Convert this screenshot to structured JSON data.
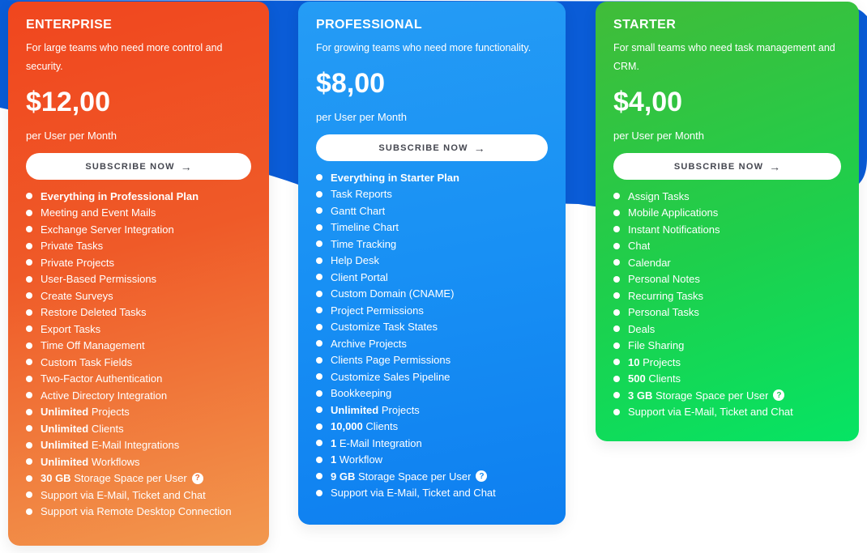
{
  "ui": {
    "cta_label": "SUBSCRIBE NOW",
    "cta_arrow": "→",
    "help_icon": "?"
  },
  "colors": {
    "enterprise_gradient_top": "#F0461E",
    "enterprise_gradient_bottom": "#F2984E",
    "professional_gradient_top": "#259CF5",
    "professional_gradient_bottom": "#0E7FF0",
    "starter_gradient_top": "#41BC39",
    "starter_gradient_bottom": "#06E464",
    "ribbon_blue": "#0A5CD7",
    "button_text": "#44464F",
    "card_text": "#FFFFFF"
  },
  "plans": [
    {
      "id": "enterprise",
      "name": "ENTERPRISE",
      "description": "For large teams who need more control and security.",
      "price": "$12,00",
      "billing_cycle": "per User per Month",
      "features": [
        {
          "b": "Everything in Professional Plan",
          "t": ""
        },
        {
          "b": "",
          "t": "Meeting and Event Mails"
        },
        {
          "b": "",
          "t": "Exchange Server Integration"
        },
        {
          "b": "",
          "t": "Private Tasks"
        },
        {
          "b": "",
          "t": "Private Projects"
        },
        {
          "b": "",
          "t": "User-Based Permissions"
        },
        {
          "b": "",
          "t": "Create Surveys"
        },
        {
          "b": "",
          "t": "Restore Deleted Tasks"
        },
        {
          "b": "",
          "t": "Export Tasks"
        },
        {
          "b": "",
          "t": "Time Off Management"
        },
        {
          "b": "",
          "t": "Custom Task Fields"
        },
        {
          "b": "",
          "t": "Two-Factor Authentication"
        },
        {
          "b": "",
          "t": "Active Directory Integration"
        },
        {
          "b": "Unlimited",
          "t": " Projects"
        },
        {
          "b": "Unlimited",
          "t": " Clients"
        },
        {
          "b": "Unlimited",
          "t": " E-Mail Integrations"
        },
        {
          "b": "Unlimited",
          "t": " Workflows"
        },
        {
          "b": "30 GB",
          "t": " Storage Space per User",
          "help": true
        },
        {
          "b": "",
          "t": "Support via E-Mail, Ticket and Chat"
        },
        {
          "b": "",
          "t": "Support via Remote Desktop Connection"
        }
      ]
    },
    {
      "id": "professional",
      "name": "PROFESSIONAL",
      "description": "For growing teams who need more functionality.",
      "price": "$8,00",
      "billing_cycle": "per User per Month",
      "features": [
        {
          "b": "Everything in Starter Plan",
          "t": ""
        },
        {
          "b": "",
          "t": "Task Reports"
        },
        {
          "b": "",
          "t": "Gantt Chart"
        },
        {
          "b": "",
          "t": "Timeline Chart"
        },
        {
          "b": "",
          "t": "Time Tracking"
        },
        {
          "b": "",
          "t": "Help Desk"
        },
        {
          "b": "",
          "t": "Client Portal"
        },
        {
          "b": "",
          "t": "Custom Domain (CNAME)"
        },
        {
          "b": "",
          "t": "Project Permissions"
        },
        {
          "b": "",
          "t": "Customize Task States"
        },
        {
          "b": "",
          "t": "Archive Projects"
        },
        {
          "b": "",
          "t": "Clients Page Permissions"
        },
        {
          "b": "",
          "t": "Customize Sales Pipeline"
        },
        {
          "b": "",
          "t": "Bookkeeping"
        },
        {
          "b": "Unlimited",
          "t": " Projects"
        },
        {
          "b": "10,000",
          "t": " Clients"
        },
        {
          "b": "1",
          "t": " E-Mail Integration"
        },
        {
          "b": "1",
          "t": " Workflow"
        },
        {
          "b": "9 GB",
          "t": " Storage Space per User",
          "help": true
        },
        {
          "b": "",
          "t": "Support via E-Mail, Ticket and Chat"
        }
      ]
    },
    {
      "id": "starter",
      "name": "STARTER",
      "description": "For small teams who need task management and CRM.",
      "price": "$4,00",
      "billing_cycle": "per User per Month",
      "features": [
        {
          "b": "",
          "t": "Assign Tasks"
        },
        {
          "b": "",
          "t": "Mobile Applications"
        },
        {
          "b": "",
          "t": "Instant Notifications"
        },
        {
          "b": "",
          "t": "Chat"
        },
        {
          "b": "",
          "t": "Calendar"
        },
        {
          "b": "",
          "t": "Personal Notes"
        },
        {
          "b": "",
          "t": "Recurring Tasks"
        },
        {
          "b": "",
          "t": "Personal Tasks"
        },
        {
          "b": "",
          "t": "Deals"
        },
        {
          "b": "",
          "t": "File Sharing"
        },
        {
          "b": "10",
          "t": " Projects"
        },
        {
          "b": "500",
          "t": " Clients"
        },
        {
          "b": "3 GB",
          "t": " Storage Space per User",
          "help": true
        },
        {
          "b": "",
          "t": "Support via E-Mail, Ticket and Chat"
        }
      ]
    }
  ]
}
